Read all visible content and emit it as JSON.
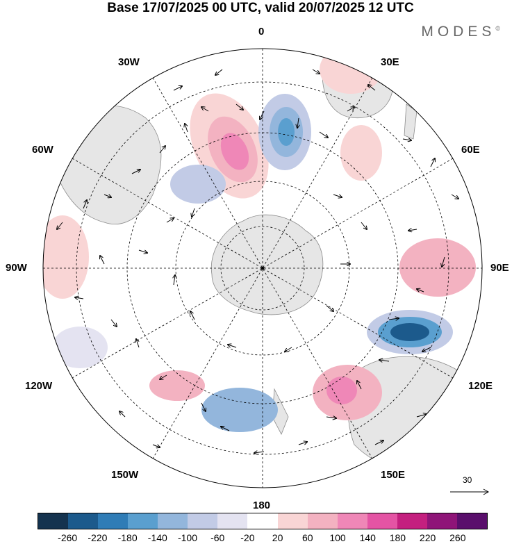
{
  "title": "Base 17/07/2025 00 UTC, valid 20/07/2025 12 UTC",
  "brand": "MODES",
  "brand_mark": "©",
  "map": {
    "projection": "polar-stereographic-south",
    "land_color": "#e6e6e6",
    "coastline_color": "#808080",
    "labels": {
      "n0": "0",
      "n30e": "30E",
      "n60e": "60E",
      "n90e": "90E",
      "n120e": "120E",
      "n150e": "150E",
      "n180": "180",
      "n150w": "150W",
      "n120w": "120W",
      "n90w": "90W",
      "n60w": "60W",
      "n30w": "30W"
    }
  },
  "reference_vector": {
    "value": "30"
  },
  "colorbar": {
    "colors": [
      "#15334f",
      "#1c5a8c",
      "#2f7cb6",
      "#5a9fcf",
      "#93b6dc",
      "#c2cbe6",
      "#e4e3f1",
      "#ffffff",
      "#f9d5d5",
      "#f3b2c1",
      "#ef87b7",
      "#e454a4",
      "#c4207f",
      "#8f1578",
      "#5a0f6c"
    ],
    "ticks": [
      "-260",
      "-220",
      "-180",
      "-140",
      "-100",
      "-60",
      "-20",
      "20",
      "60",
      "100",
      "140",
      "180",
      "220",
      "260"
    ]
  }
}
